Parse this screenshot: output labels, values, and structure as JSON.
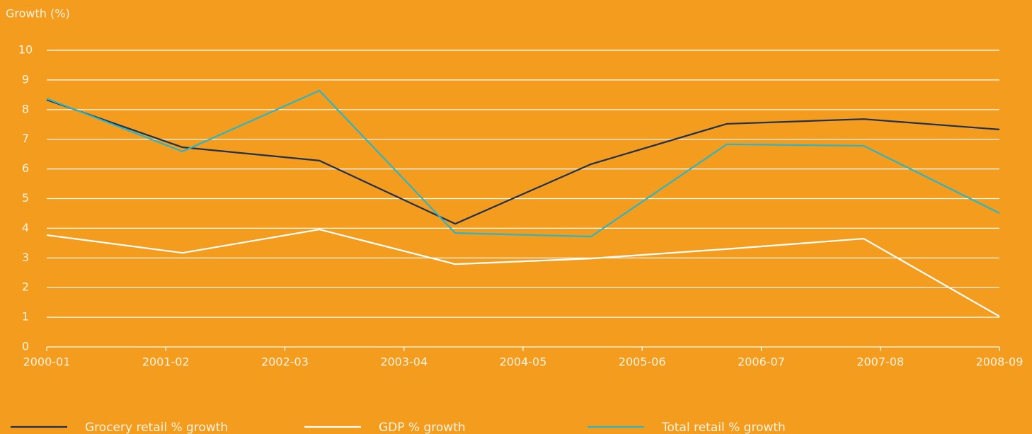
{
  "chart_data": {
    "type": "line",
    "y_label": "Growth (%)",
    "xlim": [
      0,
      8
    ],
    "xticks": [
      {
        "value": 0,
        "label": "2000-01"
      },
      {
        "value": 1,
        "label": "2001-02"
      },
      {
        "value": 2,
        "label": "2002-03"
      },
      {
        "value": 3,
        "label": "2003-04"
      },
      {
        "value": 4,
        "label": "2004-05"
      },
      {
        "value": 5,
        "label": "2005-06"
      },
      {
        "value": 6,
        "label": "2006-07"
      },
      {
        "value": 7,
        "label": "2007-08"
      },
      {
        "value": 8,
        "label": "2008-09"
      }
    ],
    "x": [
      0,
      1.14,
      2.29,
      3.43,
      4.57,
      5.71,
      6.86,
      8
    ],
    "ylim": [
      0,
      10
    ],
    "yticks": [
      0,
      1,
      2,
      3,
      4,
      5,
      6,
      7,
      8,
      9,
      10
    ],
    "grid": true,
    "legend": "bottom",
    "series": [
      {
        "name": "Grocery retail % growth",
        "color": "#1f3050",
        "values": [
          8.33,
          6.73,
          6.28,
          4.15,
          6.16,
          7.52,
          7.68,
          7.33
        ]
      },
      {
        "name": "GDP % growth",
        "color": "#ffffff",
        "values": [
          3.77,
          3.17,
          3.96,
          2.79,
          2.98,
          3.3,
          3.65,
          1.03
        ]
      },
      {
        "name": "Total retail % growth",
        "color": "#2bb5c8",
        "values": [
          8.37,
          6.59,
          8.64,
          3.84,
          3.72,
          6.83,
          6.78,
          4.51
        ]
      }
    ]
  }
}
